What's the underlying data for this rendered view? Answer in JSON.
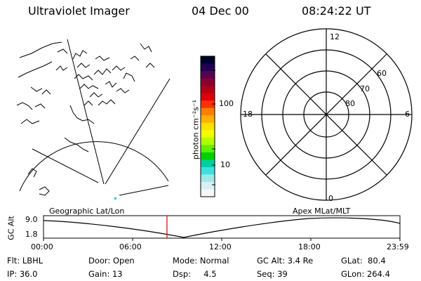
{
  "header": {
    "title": "Ultraviolet Imager",
    "date": "04 Dec 00",
    "time": "08:24:22 UT"
  },
  "colorbar": {
    "unit_label": "photon cm⁻²s⁻¹",
    "tick_100": "100",
    "tick_10": "10",
    "colors": [
      "#000030",
      "#200050",
      "#5a0050",
      "#8a0030",
      "#b00018",
      "#e00008",
      "#ff3000",
      "#ff8000",
      "#ffb000",
      "#ffe000",
      "#f0ff00",
      "#b0ff00",
      "#60f000",
      "#00d000",
      "#00d0a0",
      "#40e0e0",
      "#a0e8e8",
      "#d8f0f0",
      "#f4f8f8"
    ]
  },
  "left_panel": {
    "label": "Geographic Lat/Lon"
  },
  "polar_panel": {
    "label": "Apex MLat/MLT",
    "mlt_top": "12",
    "mlt_left": "18",
    "mlt_right": "6",
    "mlt_bottom": "0",
    "lat_60": "60",
    "lat_70": "70",
    "lat_80": "80"
  },
  "timeline": {
    "axis_label": "GC Alt",
    "y_top": "9.0",
    "y_bottom": "1.8",
    "x_ticks": [
      "00:00",
      "06:00",
      "12:00",
      "18:00",
      "23:59"
    ],
    "marker_time": "08:24"
  },
  "info": {
    "row1": {
      "flt": "Flt: LBHL",
      "door": "Door: Open",
      "mode": "Mode: Normal",
      "gc_alt": "GC Alt: 3.4 Re",
      "glat": "GLat:  80.4"
    },
    "row2": {
      "ip": "IP: 36.0",
      "gain": "Gain: 13",
      "dsp": "Dsp:     4.5",
      "seq": "Seq: 39",
      "glon": "GLon: 264.4"
    }
  }
}
